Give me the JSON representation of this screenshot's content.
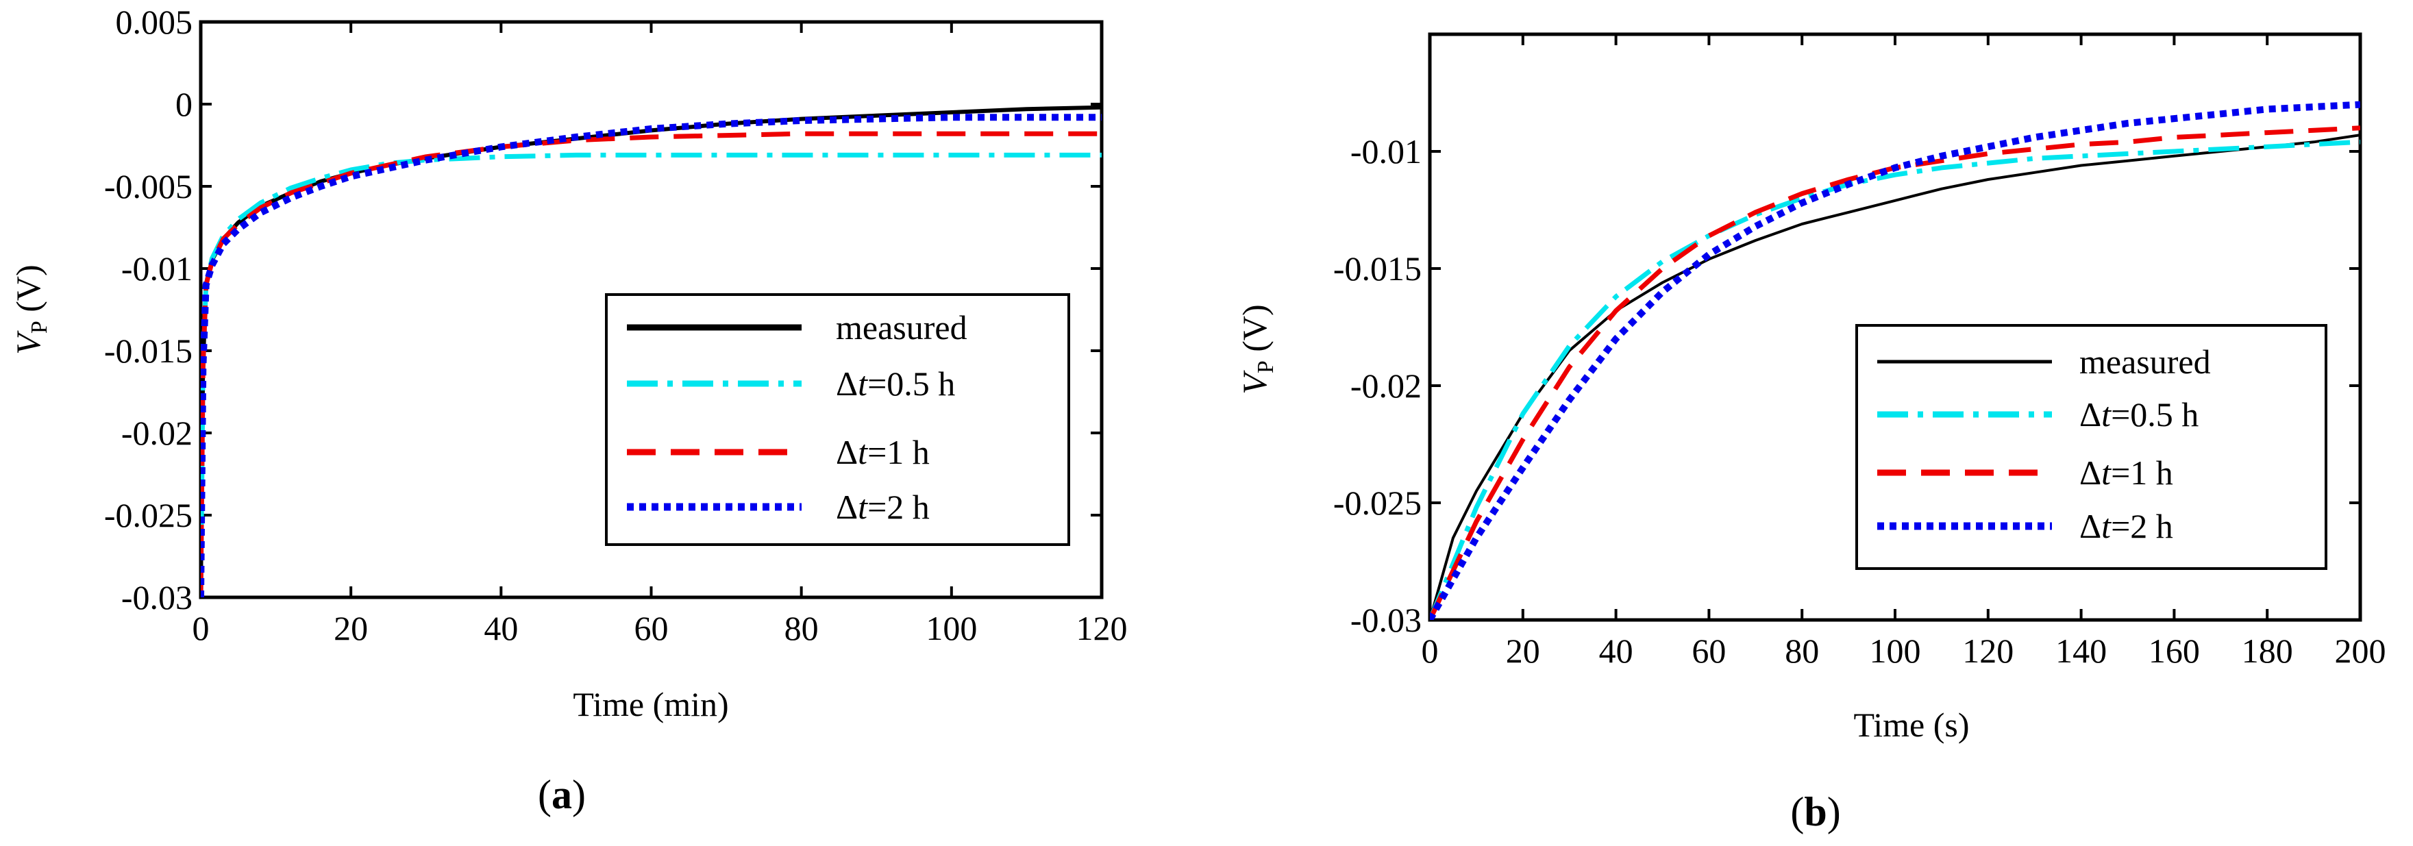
{
  "chart_data": [
    {
      "panel": "a",
      "panel_label": "a",
      "type": "line",
      "xlabel": "Time (min)",
      "ylabel_symbol": "V",
      "ylabel_sub": "P",
      "ylabel_unit": " (V)",
      "xlim": [
        0,
        120
      ],
      "ylim": [
        -0.03,
        0.005
      ],
      "xticks": [
        0,
        20,
        40,
        60,
        80,
        100,
        120
      ],
      "xtick_labels": [
        "0",
        "20",
        "40",
        "60",
        "80",
        "100",
        "120"
      ],
      "yticks": [
        -0.03,
        -0.025,
        -0.02,
        -0.015,
        -0.01,
        -0.005,
        0,
        0.005
      ],
      "ytick_labels": [
        "-0.03",
        "-0.025",
        "-0.02",
        "-0.015",
        "-0.01",
        "-0.005",
        "0",
        "0.005"
      ],
      "legend_position": "lower-right",
      "series": [
        {
          "key": "measured",
          "label_pre": "",
          "label_ital": "",
          "label_post": "measured",
          "color": "#000000",
          "x": [
            0,
            0.3,
            0.7,
            1.5,
            3,
            5,
            8,
            12,
            16,
            20,
            25,
            30,
            40,
            50,
            60,
            70,
            80,
            90,
            100,
            110,
            120
          ],
          "y": [
            -0.03,
            -0.016,
            -0.011,
            -0.0095,
            -0.0082,
            -0.0072,
            -0.0062,
            -0.0054,
            -0.0047,
            -0.0042,
            -0.0037,
            -0.0033,
            -0.0026,
            -0.0021,
            -0.0016,
            -0.0012,
            -0.0009,
            -0.0007,
            -0.0005,
            -0.0003,
            -0.0002
          ]
        },
        {
          "key": "dt05",
          "label_pre": "Δ",
          "label_ital": "t",
          "label_post": "=0.5 h",
          "color": "#00e5ee",
          "x": [
            0,
            0.3,
            0.7,
            1.5,
            3,
            5,
            8,
            12,
            16,
            20,
            25,
            30,
            35,
            40,
            50,
            60,
            80,
            100,
            120
          ],
          "y": [
            -0.03,
            -0.016,
            -0.011,
            -0.0094,
            -0.008,
            -0.007,
            -0.006,
            -0.0051,
            -0.0045,
            -0.004,
            -0.0036,
            -0.0034,
            -0.0033,
            -0.0032,
            -0.0031,
            -0.0031,
            -0.0031,
            -0.0031,
            -0.0031
          ]
        },
        {
          "key": "dt1",
          "label_pre": "Δ",
          "label_ital": "t",
          "label_post": "=1 h",
          "color": "#ee0000",
          "x": [
            0,
            0.3,
            0.7,
            1.5,
            3,
            5,
            8,
            12,
            16,
            20,
            25,
            30,
            40,
            50,
            60,
            70,
            80,
            100,
            120
          ],
          "y": [
            -0.03,
            -0.016,
            -0.011,
            -0.0096,
            -0.0082,
            -0.0073,
            -0.0063,
            -0.0054,
            -0.0048,
            -0.0042,
            -0.0037,
            -0.0032,
            -0.0026,
            -0.0022,
            -0.002,
            -0.0019,
            -0.0018,
            -0.0018,
            -0.0018
          ]
        },
        {
          "key": "dt2",
          "label_pre": "Δ",
          "label_ital": "t",
          "label_post": "=2 h",
          "color": "#0000ee",
          "x": [
            0,
            0.3,
            0.7,
            1.5,
            3,
            5,
            8,
            12,
            16,
            20,
            25,
            30,
            40,
            50,
            60,
            70,
            80,
            90,
            100,
            110,
            120
          ],
          "y": [
            -0.03,
            -0.016,
            -0.011,
            -0.0098,
            -0.0085,
            -0.0076,
            -0.0066,
            -0.0057,
            -0.005,
            -0.0044,
            -0.0039,
            -0.0034,
            -0.0026,
            -0.002,
            -0.0015,
            -0.0012,
            -0.001,
            -0.0009,
            -0.0008,
            -0.0008,
            -0.0008
          ]
        }
      ]
    },
    {
      "panel": "b",
      "panel_label": "b",
      "type": "line",
      "xlabel": "Time (s)",
      "ylabel_symbol": "V",
      "ylabel_sub": "P",
      "ylabel_unit": " (V)",
      "xlim": [
        0,
        200
      ],
      "ylim": [
        -0.03,
        -0.005
      ],
      "xticks": [
        0,
        20,
        40,
        60,
        80,
        100,
        120,
        140,
        160,
        180,
        200
      ],
      "xtick_labels": [
        "0",
        "20",
        "40",
        "60",
        "80",
        "100",
        "120",
        "140",
        "160",
        "180",
        "200"
      ],
      "yticks": [
        -0.03,
        -0.025,
        -0.02,
        -0.015,
        -0.01
      ],
      "ytick_labels": [
        "-0.03",
        "-0.025",
        "-0.02",
        "-0.015",
        "-0.01"
      ],
      "legend_position": "lower-right",
      "series": [
        {
          "key": "measured",
          "label_pre": "",
          "label_ital": "",
          "label_post": "measured",
          "color": "#000000",
          "x": [
            0,
            5,
            10,
            20,
            30,
            40,
            50,
            60,
            70,
            80,
            90,
            100,
            110,
            120,
            130,
            140,
            150,
            160,
            170,
            180,
            190,
            200
          ],
          "y": [
            -0.03,
            -0.0265,
            -0.0245,
            -0.0212,
            -0.0185,
            -0.0168,
            -0.0156,
            -0.0146,
            -0.0138,
            -0.0131,
            -0.0126,
            -0.0121,
            -0.0116,
            -0.0112,
            -0.0109,
            -0.0106,
            -0.0104,
            -0.0102,
            -0.01,
            -0.0098,
            -0.0096,
            -0.0093
          ]
        },
        {
          "key": "dt05",
          "label_pre": "Δ",
          "label_ital": "t",
          "label_post": "=0.5 h",
          "color": "#00e5ee",
          "x": [
            0,
            10,
            20,
            30,
            40,
            50,
            60,
            70,
            80,
            90,
            100,
            110,
            120,
            130,
            140,
            150,
            160,
            170,
            180,
            190,
            200
          ],
          "y": [
            -0.03,
            -0.0252,
            -0.0212,
            -0.0183,
            -0.0162,
            -0.0147,
            -0.0136,
            -0.0127,
            -0.012,
            -0.0114,
            -0.011,
            -0.0107,
            -0.0105,
            -0.0103,
            -0.0102,
            -0.0101,
            -0.01,
            -0.0099,
            -0.0098,
            -0.0097,
            -0.0096
          ]
        },
        {
          "key": "dt1",
          "label_pre": "Δ",
          "label_ital": "t",
          "label_post": "=1 h",
          "color": "#ee0000",
          "x": [
            0,
            10,
            20,
            30,
            40,
            50,
            60,
            70,
            80,
            90,
            100,
            110,
            120,
            130,
            140,
            150,
            160,
            170,
            180,
            190,
            200
          ],
          "y": [
            -0.03,
            -0.0258,
            -0.0223,
            -0.0192,
            -0.0168,
            -0.015,
            -0.0136,
            -0.0126,
            -0.0118,
            -0.0112,
            -0.0107,
            -0.0104,
            -0.0101,
            -0.0099,
            -0.0097,
            -0.0096,
            -0.0094,
            -0.0093,
            -0.0092,
            -0.0091,
            -0.009
          ]
        },
        {
          "key": "dt2",
          "label_pre": "Δ",
          "label_ital": "t",
          "label_post": "=2 h",
          "color": "#0000ee",
          "x": [
            0,
            10,
            20,
            30,
            40,
            50,
            60,
            70,
            80,
            90,
            100,
            110,
            120,
            130,
            140,
            150,
            160,
            170,
            180,
            190,
            200
          ],
          "y": [
            -0.03,
            -0.0265,
            -0.0235,
            -0.0206,
            -0.018,
            -0.016,
            -0.0144,
            -0.0132,
            -0.0122,
            -0.0114,
            -0.0107,
            -0.0102,
            -0.0098,
            -0.0094,
            -0.0091,
            -0.0088,
            -0.0086,
            -0.0084,
            -0.0082,
            -0.0081,
            -0.008
          ]
        }
      ]
    }
  ]
}
